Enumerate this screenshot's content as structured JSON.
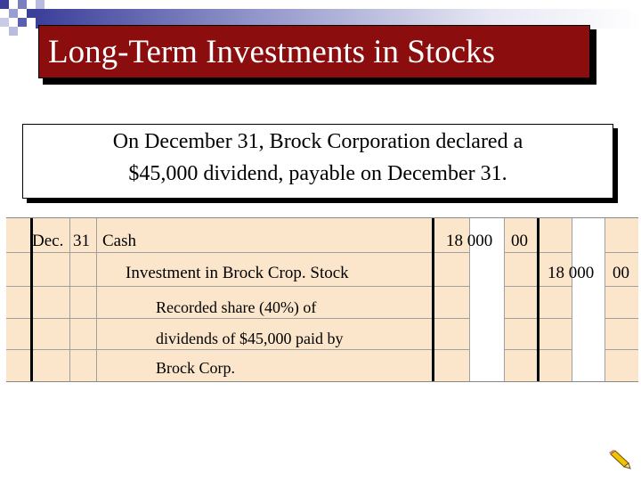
{
  "slide": {
    "title": "Long-Term Investments in Stocks",
    "description": {
      "line1": "On December 31, Brock Corporation declared a",
      "line2": "$45,000 dividend, payable on December 31."
    }
  },
  "journal": {
    "entry": {
      "month": "Dec.",
      "day": "31",
      "debit_account": "Cash",
      "debit_amount": "18 000",
      "debit_cents": "00",
      "credit_account": "Investment in Brock Crop. Stock",
      "credit_amount": "18 000",
      "credit_cents": "00",
      "explanation": [
        "Recorded share (40%) of",
        "dividends of $45,000 paid by",
        "Brock Corp."
      ]
    }
  },
  "colors": {
    "title_bg": "#8b0d0d",
    "journal_bg": "#fce6cb"
  },
  "icons": [
    "pencil-icon"
  ]
}
